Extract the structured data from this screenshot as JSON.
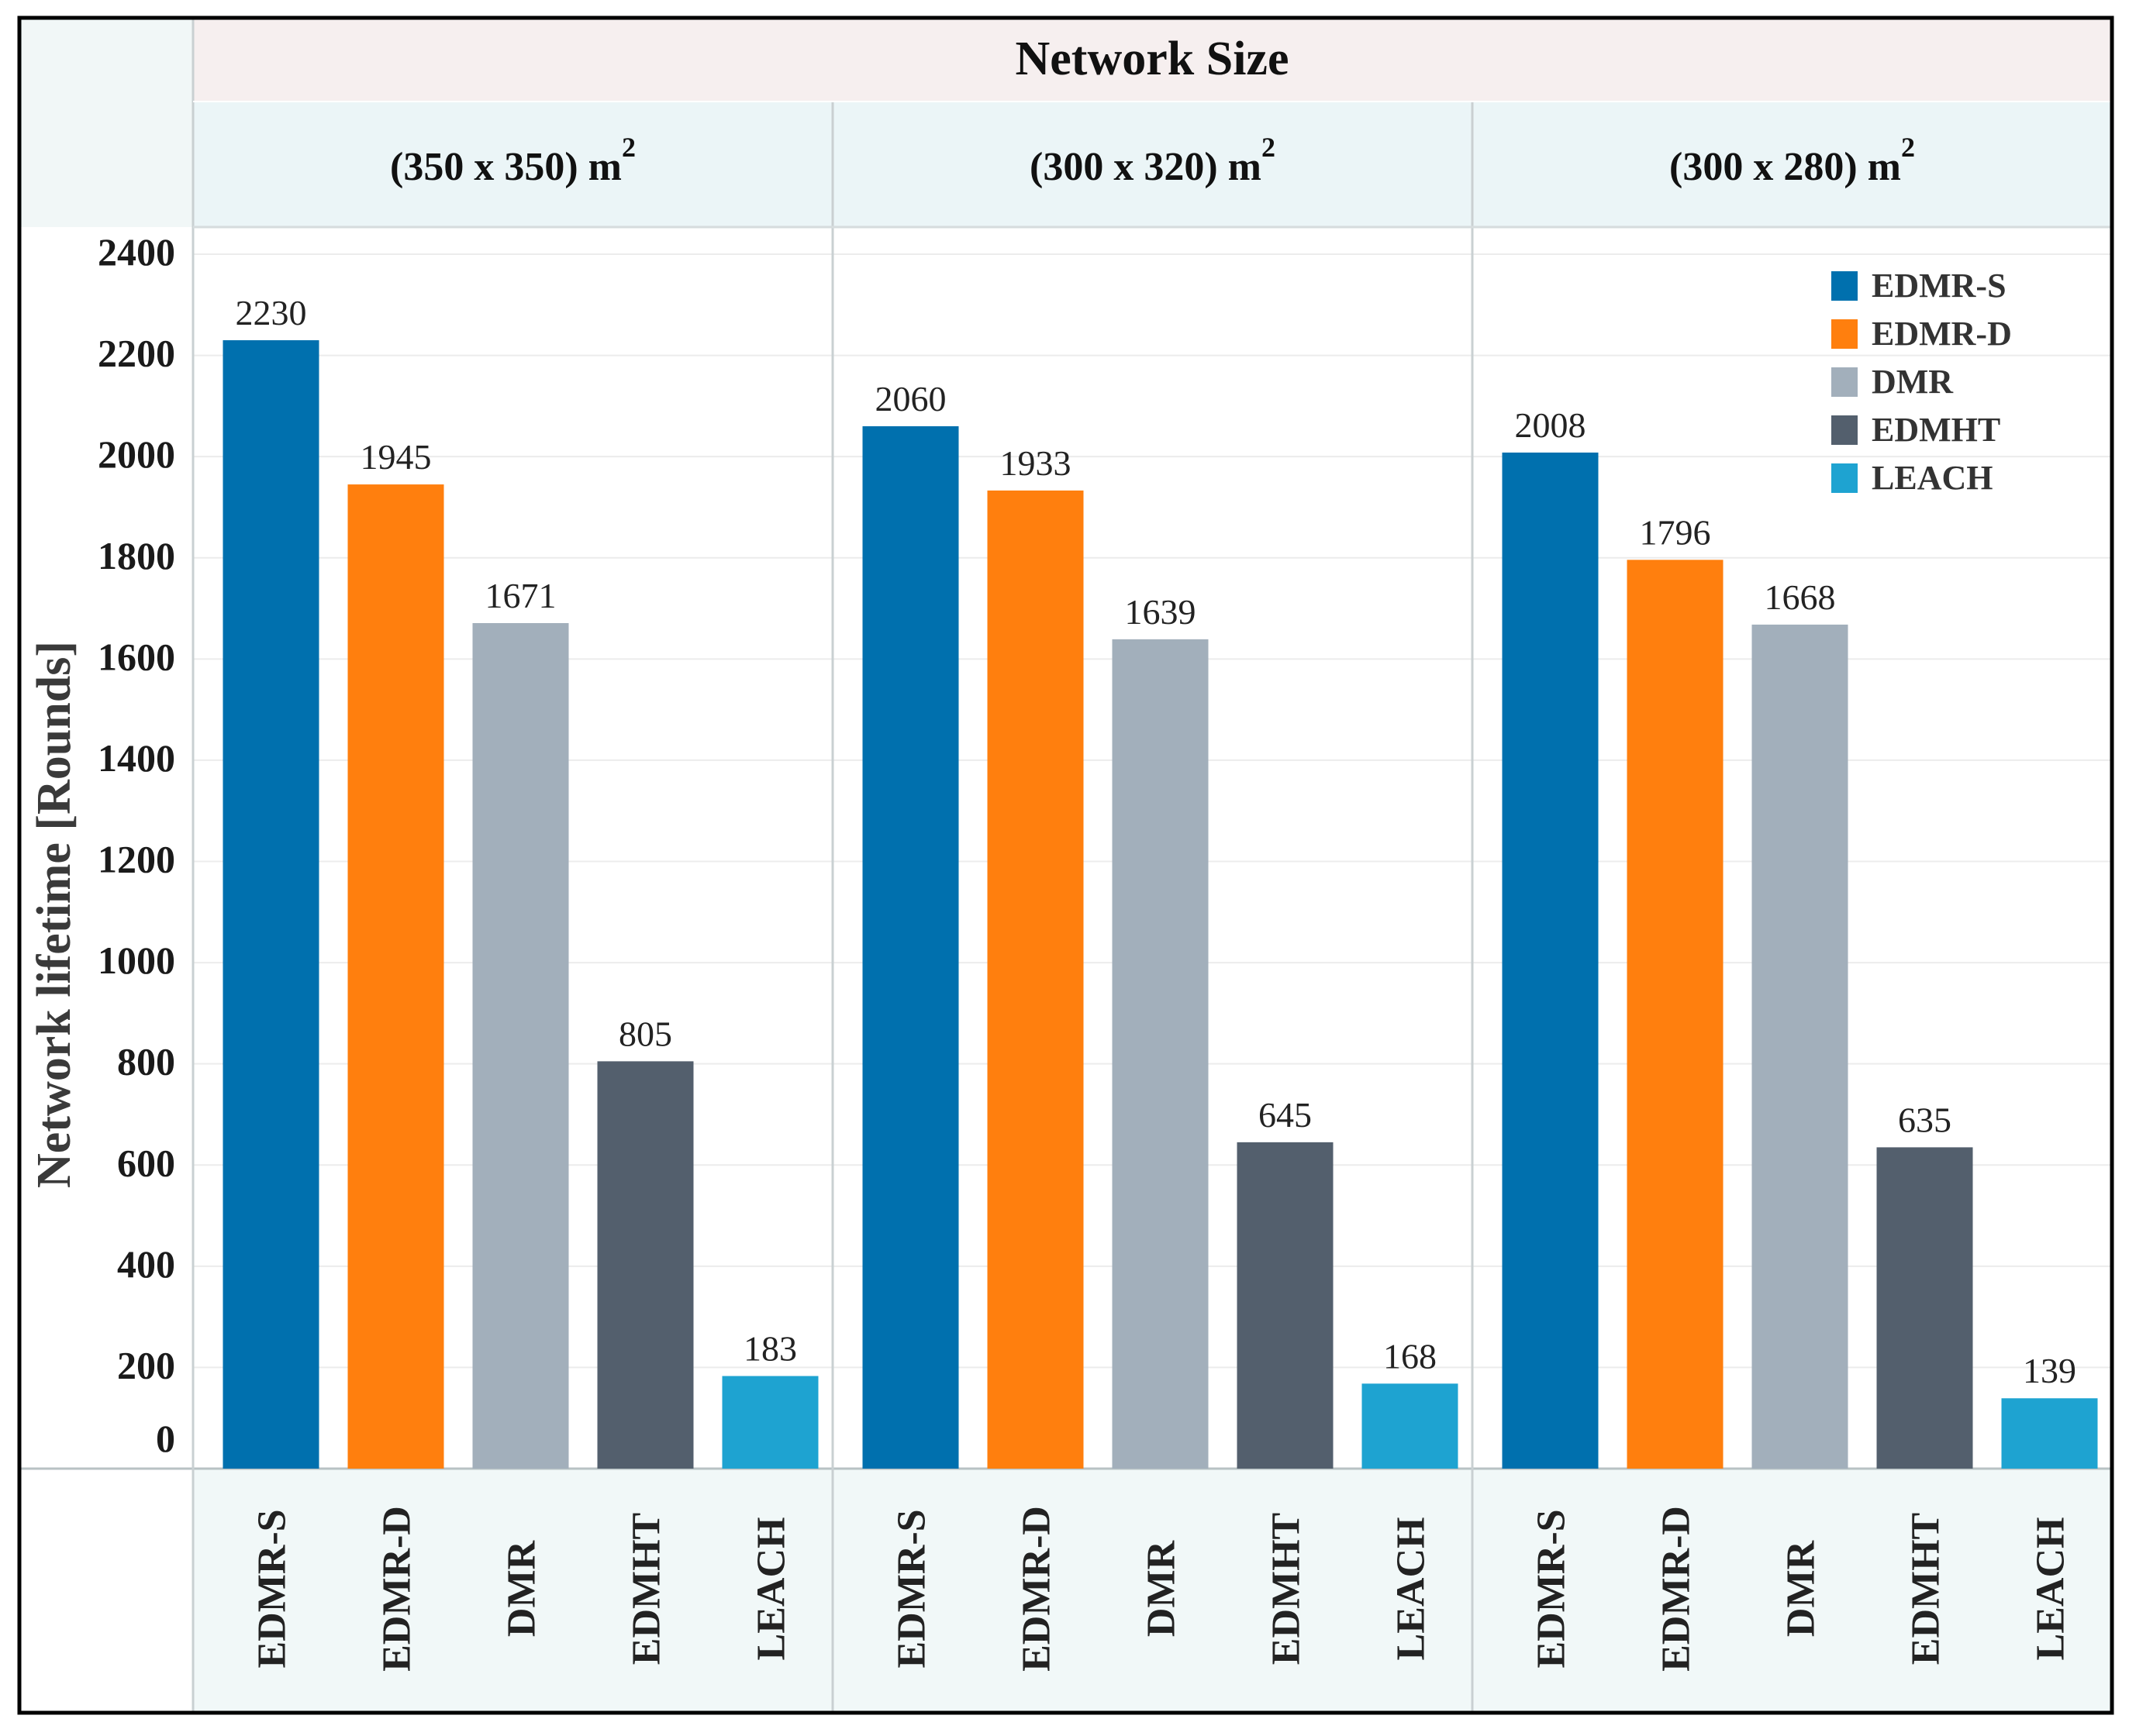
{
  "chart_data": {
    "type": "bar",
    "title": "Network Size",
    "ylabel": "Network lifetime [Rounds]",
    "xlabel": "",
    "ylim": [
      0,
      2400
    ],
    "yticks": [
      0,
      200,
      400,
      600,
      800,
      1000,
      1200,
      1400,
      1600,
      1800,
      2000,
      2200,
      2400
    ],
    "grid": true,
    "legend_position": "top-right",
    "categories": [
      "EDMR-S",
      "EDMR-D",
      "DMR",
      "EDMHT",
      "LEACH"
    ],
    "colors": {
      "EDMR-S": "#0070ae",
      "EDMR-D": "#ff7f0e",
      "DMR": "#a2afbb",
      "EDMHT": "#535f6d",
      "LEACH": "#1ea3d1"
    },
    "groups": [
      {
        "label": "(350 x 350) m",
        "sup": "2",
        "values": [
          2230,
          1945,
          1671,
          805,
          183
        ]
      },
      {
        "label": "(300 x 320) m",
        "sup": "2",
        "values": [
          2060,
          1933,
          1639,
          645,
          168
        ]
      },
      {
        "label": "(300 x 280) m",
        "sup": "2",
        "values": [
          2008,
          1796,
          1668,
          635,
          139
        ]
      }
    ]
  }
}
